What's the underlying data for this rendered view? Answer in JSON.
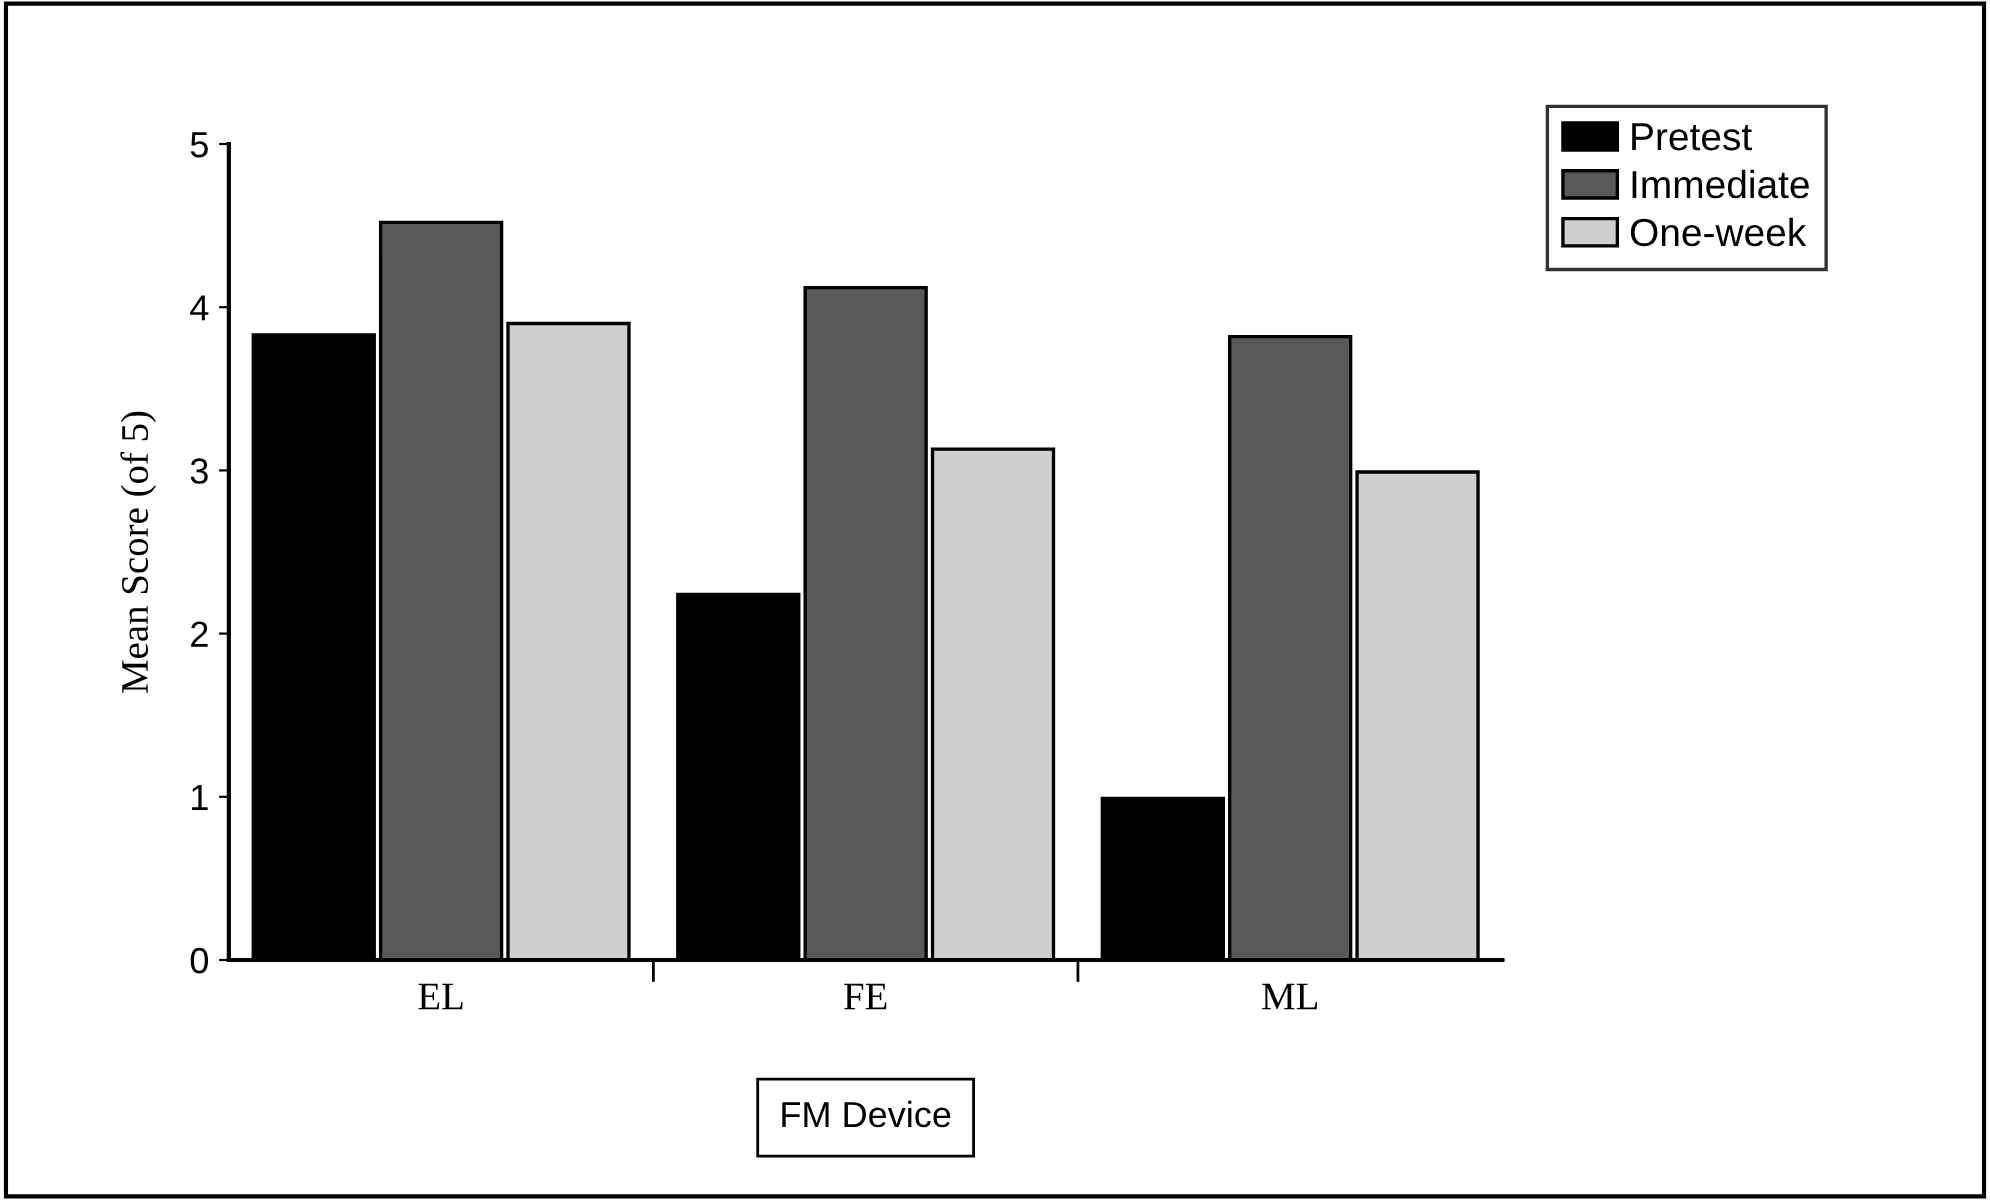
{
  "chart_data": {
    "type": "bar",
    "xlabel": "FM Device",
    "ylabel": "Mean Score (of 5)",
    "categories": [
      "EL",
      "FE",
      "ML"
    ],
    "series": [
      {
        "name": "Pretest",
        "color": "#000000",
        "values": [
          3.83,
          2.24,
          0.99
        ]
      },
      {
        "name": "Immediate",
        "color": "#595959",
        "values": [
          4.52,
          4.12,
          3.82
        ]
      },
      {
        "name": "One-week",
        "color": "#cfcfcf",
        "values": [
          3.9,
          3.13,
          2.99
        ]
      }
    ],
    "ylim": [
      0,
      5
    ],
    "yticks": [
      0,
      1,
      2,
      3,
      4,
      5
    ],
    "grid": false,
    "legend": "top right"
  }
}
